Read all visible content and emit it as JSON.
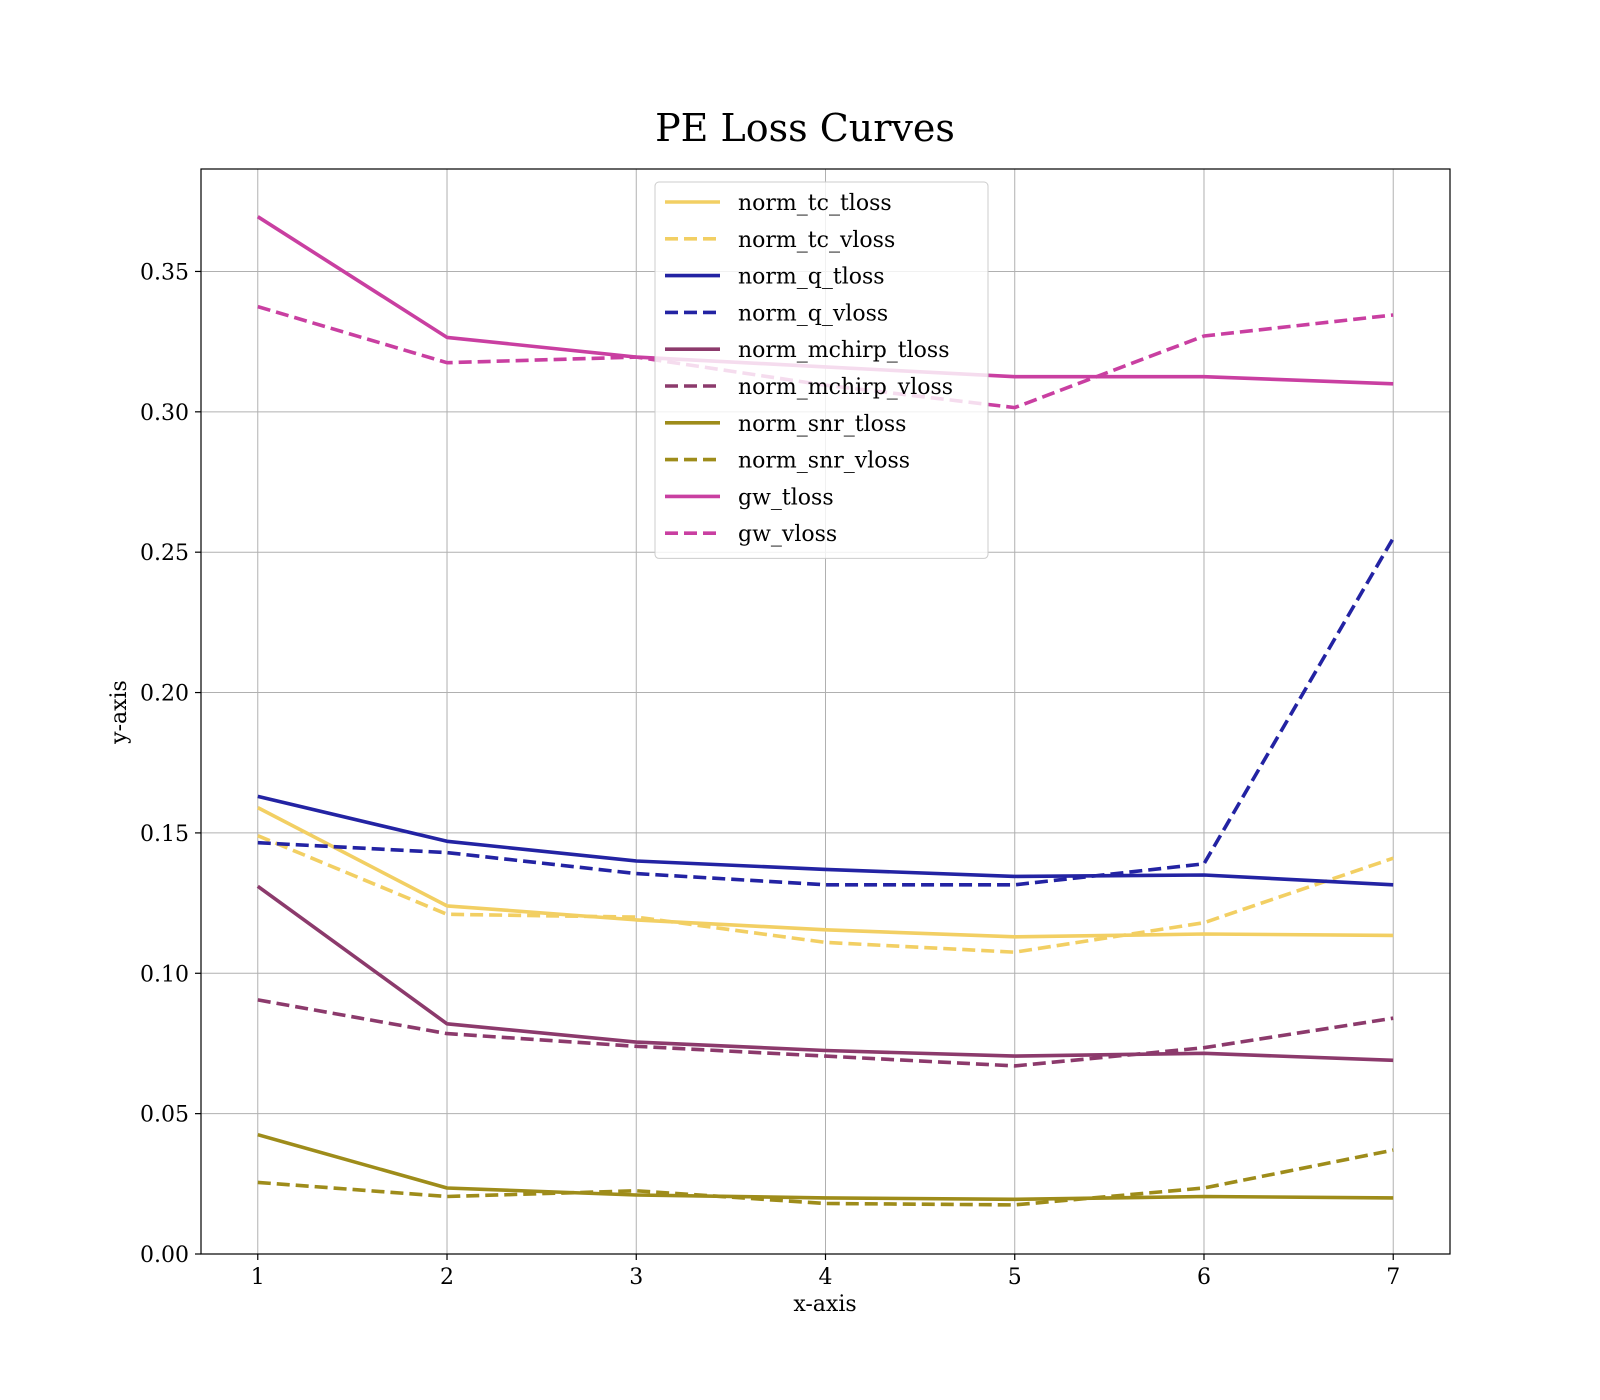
{
  "chart_data": {
    "type": "line",
    "title": "PE Loss Curves",
    "xlabel": "x-axis",
    "ylabel": "y-axis",
    "xlim": [
      0.7,
      7.3
    ],
    "ylim": [
      0.0,
      0.3865
    ],
    "xticks": [
      1,
      2,
      3,
      4,
      5,
      6,
      7
    ],
    "yticks": [
      0.0,
      0.05,
      0.1,
      0.15,
      0.2,
      0.25,
      0.3,
      0.35
    ],
    "ytick_labels": [
      "0.00",
      "0.05",
      "0.10",
      "0.15",
      "0.20",
      "0.25",
      "0.30",
      "0.35"
    ],
    "grid": true,
    "legend_position": "upper center",
    "x": [
      1,
      2,
      3,
      4,
      5,
      6,
      7
    ],
    "series": [
      {
        "name": "norm_tc_tloss",
        "color": "#f2cf63",
        "dash": false,
        "values": [
          0.159,
          0.124,
          0.119,
          0.1155,
          0.113,
          0.114,
          0.1135
        ]
      },
      {
        "name": "norm_tc_vloss",
        "color": "#f2cf63",
        "dash": true,
        "values": [
          0.149,
          0.121,
          0.12,
          0.111,
          0.1075,
          0.118,
          0.141
        ]
      },
      {
        "name": "norm_q_tloss",
        "color": "#2323a3",
        "dash": false,
        "values": [
          0.163,
          0.147,
          0.14,
          0.137,
          0.1345,
          0.135,
          0.1315
        ]
      },
      {
        "name": "norm_q_vloss",
        "color": "#2323a3",
        "dash": true,
        "values": [
          0.1465,
          0.143,
          0.1355,
          0.1315,
          0.1315,
          0.139,
          0.255
        ]
      },
      {
        "name": "norm_mchirp_tloss",
        "color": "#8c3a6c",
        "dash": false,
        "values": [
          0.131,
          0.082,
          0.0755,
          0.0725,
          0.0705,
          0.0715,
          0.069
        ]
      },
      {
        "name": "norm_mchirp_vloss",
        "color": "#8c3a6c",
        "dash": true,
        "values": [
          0.0905,
          0.0785,
          0.074,
          0.0705,
          0.067,
          0.0735,
          0.084
        ]
      },
      {
        "name": "norm_snr_tloss",
        "color": "#9e8c1a",
        "dash": false,
        "values": [
          0.0425,
          0.0235,
          0.021,
          0.02,
          0.0195,
          0.0205,
          0.02
        ]
      },
      {
        "name": "norm_snr_vloss",
        "color": "#9e8c1a",
        "dash": true,
        "values": [
          0.0255,
          0.0205,
          0.0225,
          0.018,
          0.0175,
          0.0235,
          0.037
        ]
      },
      {
        "name": "gw_tloss",
        "color": "#c93fa1",
        "dash": false,
        "values": [
          0.3695,
          0.3265,
          0.3195,
          0.316,
          0.3125,
          0.3125,
          0.31
        ]
      },
      {
        "name": "gw_vloss",
        "color": "#c93fa1",
        "dash": true,
        "values": [
          0.3375,
          0.3175,
          0.3195,
          0.3095,
          0.3015,
          0.327,
          0.3345
        ]
      }
    ]
  }
}
